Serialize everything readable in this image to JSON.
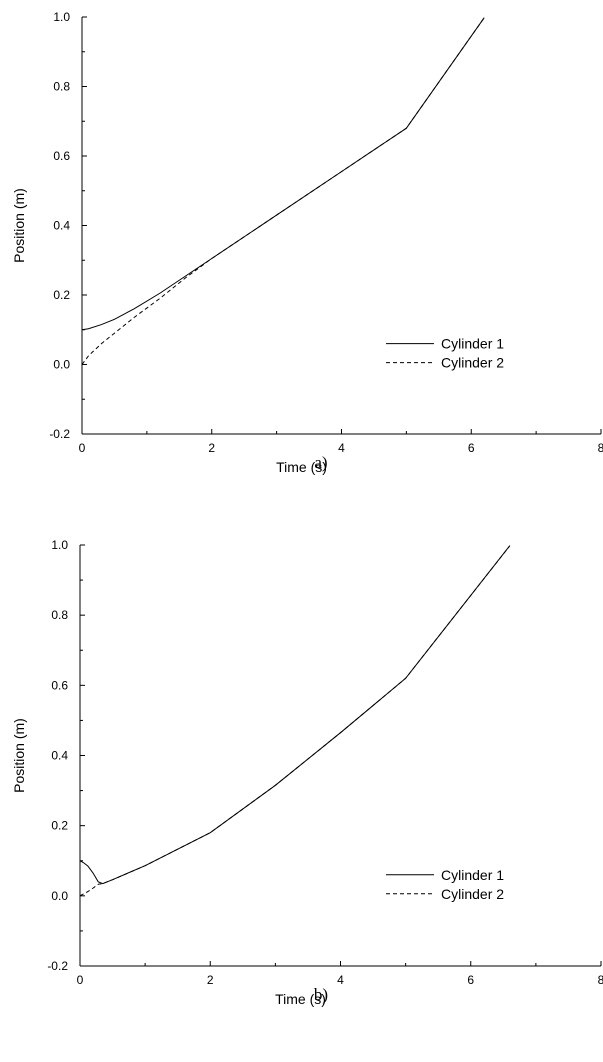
{
  "chart_data": [
    {
      "type": "line",
      "panel_label": "a)",
      "xlabel": "Time (s)",
      "ylabel": "Position (m)",
      "xlim": [
        0,
        8
      ],
      "ylim": [
        -0.2,
        1.0
      ],
      "x_ticks": [
        "0",
        "2",
        "4",
        "6",
        "8"
      ],
      "y_ticks": [
        "-0.2",
        "0.0",
        "0.2",
        "0.4",
        "0.6",
        "0.8",
        "1.0"
      ],
      "grid": false,
      "legend_position": "bottom-right",
      "series": [
        {
          "name": "Cylinder 1",
          "style": "solid",
          "x": [
            0,
            0.1,
            0.3,
            0.5,
            0.8,
            1.2,
            1.6,
            2.0,
            3.0,
            4.0,
            5.0,
            6.2
          ],
          "y": [
            0.1,
            0.103,
            0.115,
            0.13,
            0.16,
            0.205,
            0.255,
            0.305,
            0.43,
            0.555,
            0.68,
            0.998
          ]
        },
        {
          "name": "Cylinder 2",
          "style": "dashed",
          "x": [
            0,
            0.1,
            0.3,
            0.5,
            0.8,
            1.2,
            1.6,
            2.0,
            3.0,
            4.0,
            5.0,
            6.2
          ],
          "y": [
            0.0,
            0.025,
            0.06,
            0.09,
            0.135,
            0.19,
            0.25,
            0.305,
            0.43,
            0.555,
            0.68,
            0.998
          ]
        }
      ]
    },
    {
      "type": "line",
      "panel_label": "b)",
      "xlabel": "Time (s)",
      "ylabel": "Position (m)",
      "xlim": [
        0,
        8
      ],
      "ylim": [
        -0.2,
        1.0
      ],
      "x_ticks": [
        "0",
        "2",
        "4",
        "6",
        "8"
      ],
      "y_ticks": [
        "-0.2",
        "0.0",
        "0.2",
        "0.4",
        "0.6",
        "0.8",
        "1.0"
      ],
      "grid": false,
      "legend_position": "bottom-right",
      "series": [
        {
          "name": "Cylinder 1",
          "style": "solid",
          "x": [
            0,
            0.05,
            0.12,
            0.2,
            0.28,
            0.35,
            0.5,
            1.0,
            2.0,
            3.0,
            4.0,
            5.0,
            6.6
          ],
          "y": [
            0.1,
            0.095,
            0.085,
            0.065,
            0.04,
            0.035,
            0.046,
            0.086,
            0.18,
            0.315,
            0.465,
            0.62,
            0.998
          ]
        },
        {
          "name": "Cylinder 2",
          "style": "dashed",
          "x": [
            0,
            0.05,
            0.12,
            0.2,
            0.28,
            0.35,
            0.5,
            1.0,
            2.0,
            3.0,
            4.0,
            5.0,
            6.6
          ],
          "y": [
            0.0,
            0.005,
            0.012,
            0.022,
            0.033,
            0.035,
            0.046,
            0.086,
            0.18,
            0.315,
            0.465,
            0.62,
            0.998
          ]
        }
      ]
    }
  ]
}
